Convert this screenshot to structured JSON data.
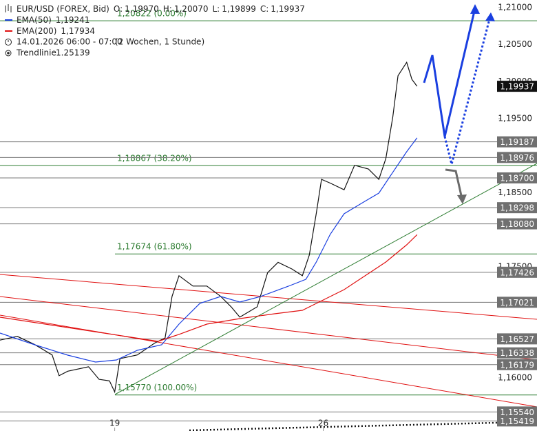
{
  "chart_data": {
    "type": "line",
    "title": "EUR/USD (FOREX, Bid)",
    "ohlc": [
      {
        "name": "O:",
        "value": "1,19970"
      },
      {
        "name": "H:",
        "value": "1,20070"
      },
      {
        "name": "L:",
        "value": "1,19899"
      },
      {
        "name": "C:",
        "value": "1,19937"
      }
    ],
    "date": "14.01.2026 06:00 - 07:00",
    "period": "(2 Wochen, 1 Stunde)",
    "trendline": "Trendlinie",
    "trendline_value": "1.25139",
    "xlim": [
      -66,
      243
    ],
    "xticks": [
      {
        "value": 0,
        "label": "19"
      },
      {
        "value": 120,
        "label": "26"
      }
    ],
    "ylim": [
      1.15283,
      1.21102
    ],
    "yticks": [
      {
        "value": 1.21,
        "label": "1,21000"
      },
      {
        "value": 1.205,
        "label": "1,20500"
      },
      {
        "value": 1.2,
        "label": "1,20000"
      },
      {
        "value": 1.195,
        "label": "1,19500"
      },
      {
        "value": 1.185,
        "label": "1,18500"
      },
      {
        "value": 1.175,
        "label": "1,17500"
      },
      {
        "value": 1.165,
        "label": "1,16500"
      },
      {
        "value": 1.16,
        "label": "1,16000"
      }
    ],
    "series": [
      {
        "color": "#111111",
        "x": [
          -66,
          -56,
          -46,
          -36,
          -32,
          -27,
          -15,
          -9,
          -3,
          0,
          3,
          13,
          23,
          29,
          33,
          37,
          45,
          53,
          61,
          67,
          72,
          82,
          88,
          94,
          102,
          108,
          112,
          116,
          119,
          124,
          132,
          138,
          146,
          152,
          156,
          160,
          163,
          168,
          171,
          174
        ],
        "values": [
          1.1651,
          1.1656,
          1.1645,
          1.1631,
          1.1603,
          1.1609,
          1.1615,
          1.1598,
          1.1596,
          1.1581,
          1.1626,
          1.1631,
          1.1647,
          1.1654,
          1.171,
          1.1738,
          1.1724,
          1.1724,
          1.171,
          1.1696,
          1.1682,
          1.1696,
          1.1742,
          1.1756,
          1.1747,
          1.1738,
          1.1766,
          1.1822,
          1.1868,
          1.1863,
          1.1854,
          1.1887,
          1.1882,
          1.1868,
          1.1896,
          1.1952,
          1.2008,
          1.2026,
          1.2003,
          1.19937
        ]
      },
      {
        "name": "EMA(50)",
        "value_label": "1,19241",
        "color": "#1a3fe0",
        "x": [
          -66,
          -46,
          -27,
          -11,
          1,
          13,
          27,
          37,
          49,
          61,
          72,
          84,
          100,
          110,
          116,
          124,
          132,
          144,
          152,
          160,
          168,
          174
        ],
        "values": [
          1.16605,
          1.16447,
          1.16307,
          1.16214,
          1.16242,
          1.16372,
          1.16447,
          1.16726,
          1.17006,
          1.17099,
          1.17024,
          1.17099,
          1.17238,
          1.17331,
          1.17564,
          1.17937,
          1.18216,
          1.18384,
          1.18495,
          1.18775,
          1.19054,
          1.19241
        ]
      },
      {
        "name": "EMA(200)",
        "value_label": "1,17934",
        "color": "#e01010",
        "x": [
          -66,
          25,
          37,
          53,
          72,
          92,
          108,
          120,
          132,
          144,
          156,
          168,
          174
        ],
        "values": [
          1.16819,
          1.16493,
          1.16587,
          1.16726,
          1.16801,
          1.16866,
          1.16912,
          1.17052,
          1.17192,
          1.17378,
          1.17564,
          1.17797,
          1.17934
        ]
      }
    ],
    "last": {
      "value": 1.19937,
      "label": "1,19937"
    },
    "levels": [
      {
        "value": 1.19187,
        "label": "1,19187"
      },
      {
        "value": 1.18976,
        "label": "1,18976"
      },
      {
        "value": 1.187,
        "label": "1,18700"
      },
      {
        "value": 1.18298,
        "label": "1,18298"
      },
      {
        "value": 1.1808,
        "label": "1,18080"
      },
      {
        "value": 1.17426,
        "label": "1,17426"
      },
      {
        "value": 1.17021,
        "label": "1,17021"
      },
      {
        "value": 1.16527,
        "label": "1,16527"
      },
      {
        "value": 1.16338,
        "label": "1,16338"
      },
      {
        "value": 1.16179,
        "label": "1,16179"
      },
      {
        "value": 1.1554,
        "label": "1,15540"
      },
      {
        "value": 1.15419,
        "label": "1,15419"
      }
    ],
    "fib_levels": [
      {
        "value": 1.20822,
        "label": "1,20822 (0.00%)"
      },
      {
        "value": 1.18867,
        "label": "1,18867 (38.20%)"
      },
      {
        "value": 1.17674,
        "label": "1,17674 (61.80%)"
      },
      {
        "value": 1.1577,
        "label": "1,15770 (100.00%)"
      }
    ]
  }
}
